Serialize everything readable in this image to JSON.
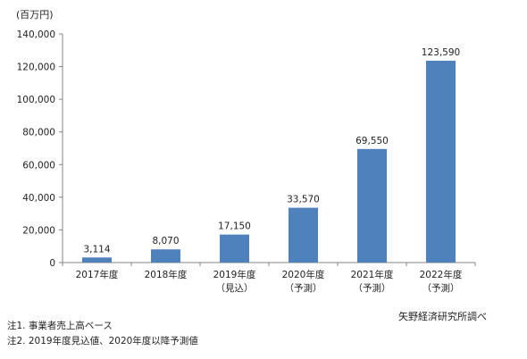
{
  "chart_data": {
    "type": "bar",
    "unit_label": "(百万円)",
    "categories": [
      [
        "2017年度"
      ],
      [
        "2018年度"
      ],
      [
        "2019年度",
        "（見込）"
      ],
      [
        "2020年度",
        "（予測）"
      ],
      [
        "2021年度",
        "（予測）"
      ],
      [
        "2022年度",
        "（予測）"
      ]
    ],
    "values": [
      3114,
      8070,
      17150,
      33570,
      69550,
      123590
    ],
    "data_labels": [
      "3,114",
      "8,070",
      "17,150",
      "33,570",
      "69,550",
      "123,590"
    ],
    "ylim": [
      0,
      140000
    ],
    "yticks": [
      0,
      20000,
      40000,
      60000,
      80000,
      100000,
      120000,
      140000
    ],
    "ytick_labels": [
      "0",
      "20,000",
      "40,000",
      "60,000",
      "80,000",
      "100,000",
      "120,000",
      "140,000"
    ],
    "grid": false,
    "bar_color": "#4f81bd"
  },
  "notes": {
    "note1": "注1. 事業者売上高ベース",
    "note2": "注2. 2019年度見込値、2020年度以降予測値"
  },
  "source": "矢野経済研究所調べ"
}
